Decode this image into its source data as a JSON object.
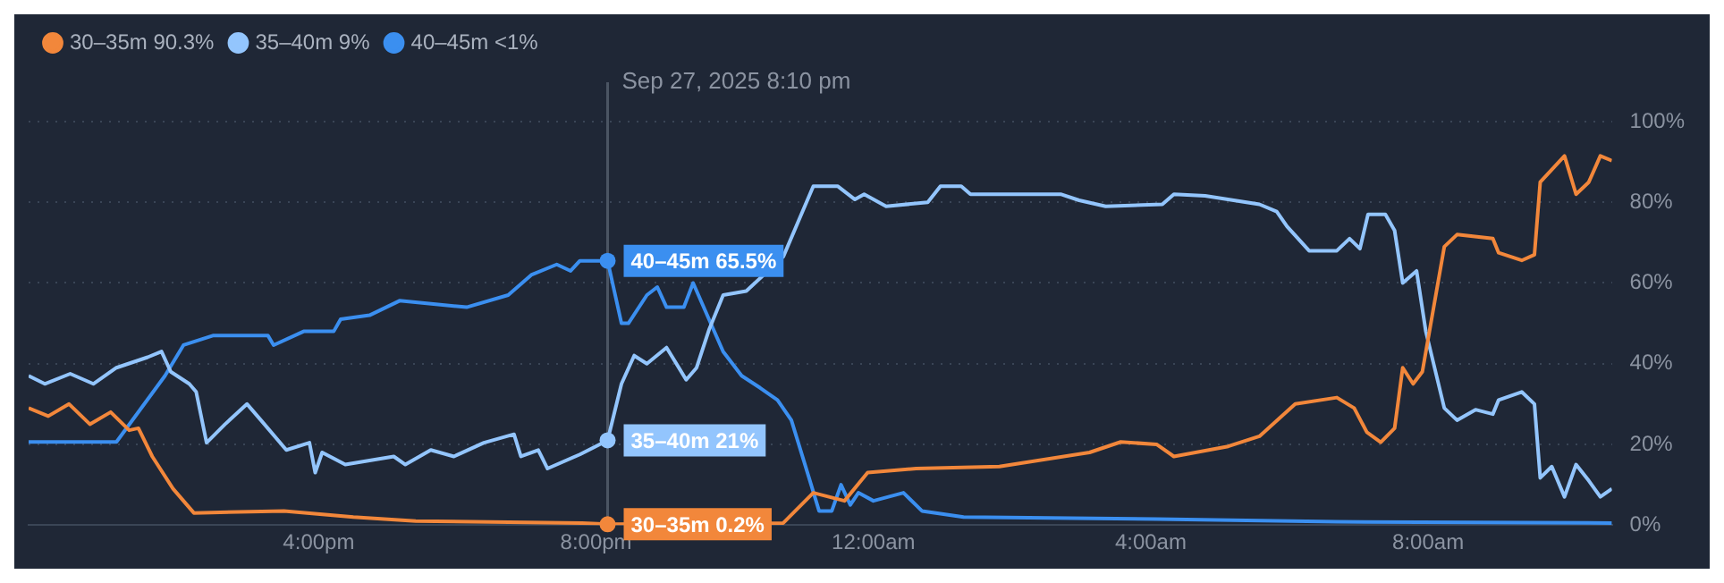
{
  "chart_data": {
    "type": "line",
    "xlim": [
      "2025-09-27T11:49",
      "2025-09-28T10:39"
    ],
    "ylim": [
      0,
      100
    ],
    "xticks": [
      {
        "value": "2025-09-27T16:00",
        "label": "4:00pm"
      },
      {
        "value": "2025-09-27T20:00",
        "label": "8:00pm"
      },
      {
        "value": "2025-09-28T00:00",
        "label": "12:00am"
      },
      {
        "value": "2025-09-28T04:00",
        "label": "4:00am"
      },
      {
        "value": "2025-09-28T08:00",
        "label": "8:00am"
      }
    ],
    "yticks": [
      {
        "value": 0,
        "label": "0%"
      },
      {
        "value": 20,
        "label": "20%"
      },
      {
        "value": 40,
        "label": "40%"
      },
      {
        "value": 60,
        "label": "60%"
      },
      {
        "value": 80,
        "label": "80%"
      },
      {
        "value": 100,
        "label": "100%"
      }
    ],
    "grid": "y",
    "legend": "top left",
    "marker": "none",
    "line_style": "solid",
    "ref_lines": [
      {
        "axis": "x",
        "value": "2025-09-27T20:10",
        "label": "Sep 27, 2025 8:10 pm",
        "color": "#4b5563"
      }
    ],
    "annotations": [
      {
        "text": "40–45m 65.5%",
        "x": "2025-09-27T20:10",
        "y": 65.5
      },
      {
        "text": "35–40m 21%",
        "x": "2025-09-27T20:10",
        "y": 21
      },
      {
        "text": "30–35m 0.2%",
        "x": "2025-09-27T20:10",
        "y": 0.2
      }
    ],
    "series": [
      {
        "name": "30–35m 90.3%",
        "color": "#f2873b",
        "x": [
          "2025-09-27T11:49",
          "2025-09-27T12:06",
          "2025-09-27T12:24",
          "2025-09-27T12:42",
          "2025-09-27T13:00",
          "2025-09-27T13:16",
          "2025-09-27T13:24",
          "2025-09-27T13:36",
          "2025-09-27T13:54",
          "2025-09-27T14:12",
          "2025-09-27T15:30",
          "2025-09-27T16:30",
          "2025-09-27T17:24",
          "2025-09-27T19:48",
          "2025-09-27T20:10",
          "2025-09-27T22:42",
          "2025-09-27T23:08",
          "2025-09-27T23:35",
          "2025-09-27T23:55",
          "2025-09-28T00:37",
          "2025-09-28T01:49",
          "2025-09-28T03:07",
          "2025-09-28T03:34",
          "2025-09-28T04:05",
          "2025-09-28T04:20",
          "2025-09-28T05:07",
          "2025-09-28T05:34",
          "2025-09-28T06:05",
          "2025-09-28T06:41",
          "2025-09-28T06:56",
          "2025-09-28T07:07",
          "2025-09-28T07:19",
          "2025-09-28T07:31",
          "2025-09-28T07:38",
          "2025-09-28T07:47",
          "2025-09-28T07:55",
          "2025-09-28T08:14",
          "2025-09-28T08:25",
          "2025-09-28T08:56",
          "2025-09-28T09:01",
          "2025-09-28T09:21",
          "2025-09-28T09:32",
          "2025-09-28T09:37",
          "2025-09-28T09:58",
          "2025-09-28T10:08",
          "2025-09-28T10:19",
          "2025-09-28T10:29",
          "2025-09-28T10:39"
        ],
        "values": [
          29,
          27,
          30,
          25,
          28,
          23.5,
          24,
          17,
          9,
          3,
          3.5,
          2,
          1,
          0.5,
          0.2,
          0.5,
          8,
          6,
          13,
          14,
          14.5,
          18,
          20.6,
          20,
          17,
          19.5,
          22,
          30,
          31.6,
          29,
          23,
          20.5,
          24,
          39,
          35,
          38,
          69,
          72,
          71,
          67.5,
          65.6,
          67,
          85,
          91.5,
          82,
          85,
          91.5,
          90.3
        ]
      },
      {
        "name": "35–40m 9%",
        "color": "#93c5fd",
        "x": [
          "2025-09-27T11:49",
          "2025-09-27T12:03",
          "2025-09-27T12:25",
          "2025-09-27T12:45",
          "2025-09-27T13:05",
          "2025-09-27T13:32",
          "2025-09-27T13:44",
          "2025-09-27T13:52",
          "2025-09-27T14:08",
          "2025-09-27T14:14",
          "2025-09-27T14:23",
          "2025-09-27T14:39",
          "2025-09-27T14:58",
          "2025-09-27T15:10",
          "2025-09-27T15:32",
          "2025-09-27T15:52",
          "2025-09-27T15:57",
          "2025-09-27T16:03",
          "2025-09-27T16:23",
          "2025-09-27T17:05",
          "2025-09-27T17:15",
          "2025-09-27T17:37",
          "2025-09-27T17:57",
          "2025-09-27T18:23",
          "2025-09-27T18:49",
          "2025-09-27T18:55",
          "2025-09-27T19:10",
          "2025-09-27T19:18",
          "2025-09-27T19:46",
          "2025-09-27T20:10",
          "2025-09-27T20:22",
          "2025-09-27T20:33",
          "2025-09-27T20:44",
          "2025-09-27T21:01",
          "2025-09-27T21:18",
          "2025-09-27T21:27",
          "2025-09-27T21:38",
          "2025-09-27T21:50",
          "2025-09-27T22:10",
          "2025-09-27T22:42",
          "2025-09-27T23:08",
          "2025-09-27T23:29",
          "2025-09-27T23:44",
          "2025-09-27T23:52",
          "2025-09-28T00:11",
          "2025-09-28T00:47",
          "2025-09-28T00:58",
          "2025-09-28T01:16",
          "2025-09-28T01:24",
          "2025-09-28T02:42",
          "2025-09-28T02:58",
          "2025-09-28T03:21",
          "2025-09-28T04:10",
          "2025-09-28T04:20",
          "2025-09-28T04:47",
          "2025-09-28T05:34",
          "2025-09-28T05:49",
          "2025-09-28T05:58",
          "2025-09-28T06:17",
          "2025-09-28T06:41",
          "2025-09-28T06:52",
          "2025-09-28T07:01",
          "2025-09-28T07:08",
          "2025-09-28T07:23",
          "2025-09-28T07:31",
          "2025-09-28T07:38",
          "2025-09-28T07:50",
          "2025-09-28T07:58",
          "2025-09-28T08:14",
          "2025-09-28T08:25",
          "2025-09-28T08:41",
          "2025-09-28T08:56",
          "2025-09-28T09:01",
          "2025-09-28T09:21",
          "2025-09-28T09:32",
          "2025-09-28T09:37",
          "2025-09-28T09:47",
          "2025-09-28T09:58",
          "2025-09-28T10:08",
          "2025-09-28T10:19",
          "2025-09-28T10:29",
          "2025-09-28T10:39"
        ],
        "values": [
          37,
          35,
          37.5,
          35,
          39,
          41.6,
          43,
          38,
          35,
          33,
          20.4,
          25,
          30,
          26,
          18.6,
          20.4,
          13,
          18,
          15,
          17,
          15,
          18.6,
          17,
          20.4,
          22.5,
          17,
          18.6,
          14,
          17.5,
          21,
          35,
          42,
          40,
          44,
          36,
          39,
          48.6,
          57,
          58,
          66.5,
          84,
          84,
          80.7,
          82,
          79,
          80,
          84,
          84,
          82,
          82,
          80.5,
          79,
          79.5,
          82,
          81.6,
          79.5,
          77.7,
          74,
          68,
          68,
          71,
          68.5,
          77,
          77,
          73,
          60,
          63,
          48,
          29,
          26,
          28.6,
          27.5,
          31,
          33,
          30,
          11.7,
          14.5,
          7,
          15,
          11,
          7,
          9
        ]
      },
      {
        "name": "40–45m <1%",
        "color": "#3b8ff0",
        "x": [
          "2025-09-27T11:49",
          "2025-09-27T13:05",
          "2025-09-27T13:47",
          "2025-09-27T14:03",
          "2025-09-27T14:29",
          "2025-09-27T15:16",
          "2025-09-27T15:21",
          "2025-09-27T15:47",
          "2025-09-27T16:13",
          "2025-09-27T16:19",
          "2025-09-27T16:44",
          "2025-09-27T17:10",
          "2025-09-27T18:08",
          "2025-09-27T18:44",
          "2025-09-27T19:04",
          "2025-09-27T19:26",
          "2025-09-27T19:38",
          "2025-09-27T19:46",
          "2025-09-27T20:10",
          "2025-09-27T20:22",
          "2025-09-27T20:28",
          "2025-09-27T20:44",
          "2025-09-27T20:53",
          "2025-09-27T21:01",
          "2025-09-27T21:16",
          "2025-09-27T21:24",
          "2025-09-27T21:50",
          "2025-09-27T22:06",
          "2025-09-27T22:22",
          "2025-09-27T22:37",
          "2025-09-27T22:49",
          "2025-09-27T23:04",
          "2025-09-27T23:13",
          "2025-09-27T23:24",
          "2025-09-27T23:32",
          "2025-09-27T23:40",
          "2025-09-27T23:47",
          "2025-09-28T00:00",
          "2025-09-28T00:26",
          "2025-09-28T00:42",
          "2025-09-28T01:18",
          "2025-09-28T04:05",
          "2025-09-28T06:41",
          "2025-09-28T10:39"
        ],
        "values": [
          20.6,
          20.6,
          37,
          44.6,
          47,
          47,
          44.6,
          48,
          48,
          51,
          52,
          55.6,
          54,
          57,
          62,
          64.6,
          63,
          65.5,
          65.5,
          50,
          50,
          57,
          59,
          54,
          54,
          60,
          43,
          37,
          34,
          31,
          26,
          12,
          3.5,
          3.5,
          10,
          5,
          8,
          6,
          8,
          3.5,
          2,
          1.5,
          0.8,
          0.5
        ]
      }
    ]
  }
}
